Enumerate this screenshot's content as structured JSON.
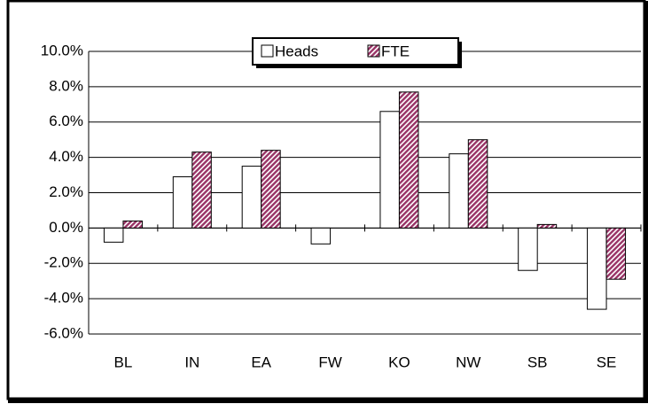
{
  "chart_data": {
    "type": "bar",
    "categories": [
      "BL",
      "IN",
      "EA",
      "FW",
      "KO",
      "NW",
      "SB",
      "SE"
    ],
    "series": [
      {
        "name": "Heads",
        "color": "#ffffff",
        "values": [
          -0.8,
          2.9,
          3.5,
          -0.9,
          6.6,
          4.2,
          -2.4,
          -4.6
        ]
      },
      {
        "name": "FTE",
        "color": "#993366",
        "pattern": "hatch",
        "values": [
          0.4,
          4.3,
          4.4,
          0,
          7.7,
          5.0,
          0.2,
          -2.9
        ]
      }
    ],
    "ylim": [
      -6,
      10
    ],
    "yticks": [
      {
        "value": -6,
        "label": "-6.0%"
      },
      {
        "value": -4,
        "label": "-4.0%"
      },
      {
        "value": -2,
        "label": "-2.0%"
      },
      {
        "value": 0,
        "label": "0.0%"
      },
      {
        "value": 2,
        "label": "2.0%"
      },
      {
        "value": 4,
        "label": "4.0%"
      },
      {
        "value": 6,
        "label": "6.0%"
      },
      {
        "value": 8,
        "label": "8.0%"
      },
      {
        "value": 10,
        "label": "10.0%"
      }
    ],
    "grid": true,
    "legend": "top"
  }
}
